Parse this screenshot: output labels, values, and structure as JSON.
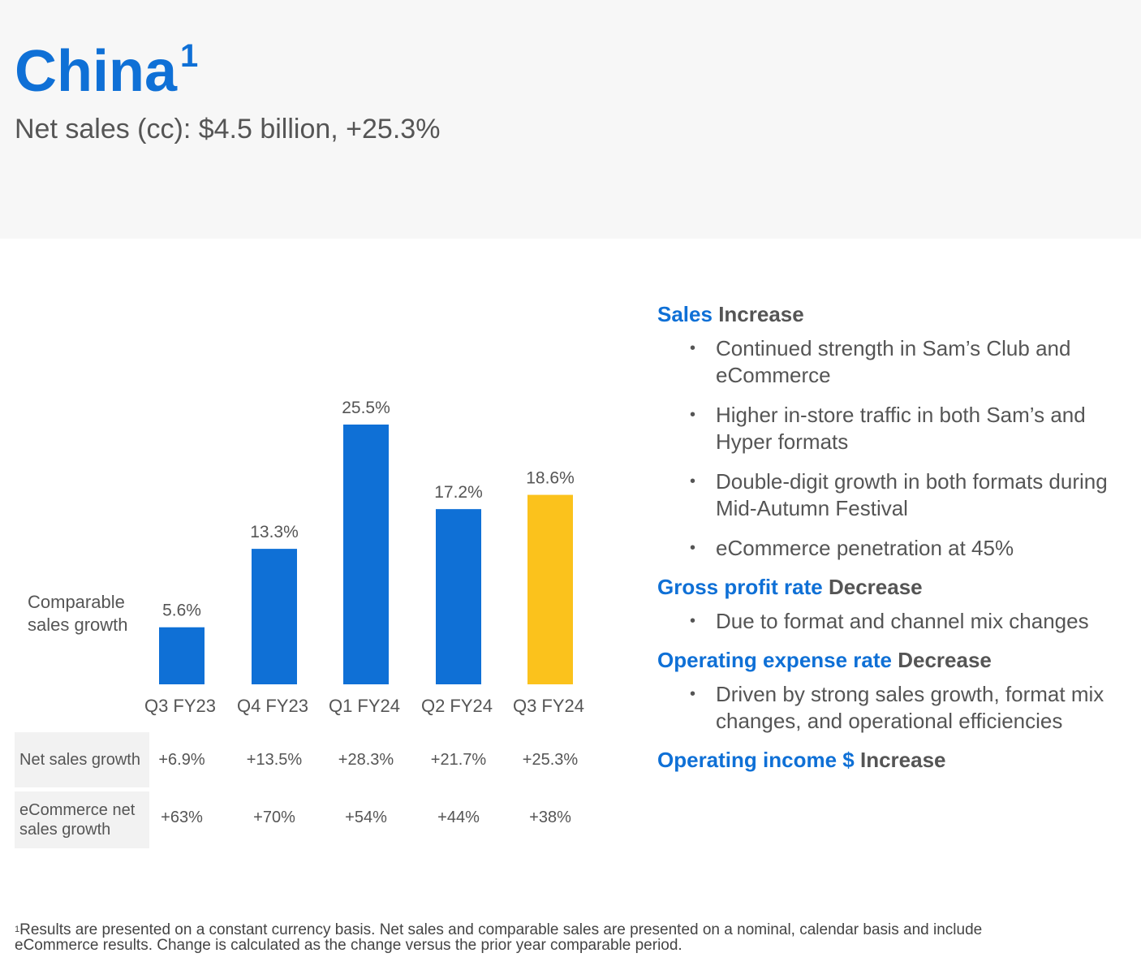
{
  "header": {
    "title": "China",
    "title_sup": "1",
    "subtitle": "Net sales (cc): $4.5 billion, +25.3%"
  },
  "chart_data": {
    "type": "bar",
    "categories": [
      "Q3 FY23",
      "Q4 FY23",
      "Q1 FY24",
      "Q2 FY24",
      "Q3 FY24"
    ],
    "values": [
      5.6,
      13.3,
      25.5,
      17.2,
      18.6
    ],
    "value_labels": [
      "5.6%",
      "13.3%",
      "25.5%",
      "17.2%",
      "18.6%"
    ],
    "series_label": "Comparable sales growth",
    "colors": [
      "#0f70d6",
      "#0f70d6",
      "#0f70d6",
      "#0f70d6",
      "#fbc21c"
    ],
    "ylim": [
      0,
      25.5
    ]
  },
  "table": {
    "rows": [
      {
        "label": "Net sales growth",
        "values": [
          "+6.9%",
          "+13.5%",
          "+28.3%",
          "+21.7%",
          "+25.3%"
        ]
      },
      {
        "label": "eCommerce net sales growth",
        "values": [
          "+63%",
          "+70%",
          "+54%",
          "+44%",
          "+38%"
        ]
      }
    ]
  },
  "commentary": {
    "sales": {
      "accent": "Sales",
      "result": "Increase",
      "bullets": [
        "Continued strength in Sam’s Club and eCommerce",
        "Higher in-store traffic in both Sam’s and Hyper formats",
        "Double-digit growth in both formats during Mid-Autumn Festival",
        "eCommerce penetration at 45%"
      ]
    },
    "gross_profit": {
      "accent": "Gross profit rate",
      "result": "Decrease",
      "bullets": [
        "Due to format and channel mix changes"
      ]
    },
    "opex": {
      "accent": "Operating expense rate",
      "result": "Decrease",
      "bullets": [
        "Driven by strong sales growth, format mix changes, and operational efficiencies"
      ]
    },
    "op_income": {
      "accent": "Operating income $",
      "result": "Increase"
    }
  },
  "footnote": {
    "sup": "1",
    "text": "Results are presented on a constant currency basis. Net sales and comparable sales are presented on a nominal, calendar basis and include eCommerce results. Change is calculated as the change versus the prior year comparable period."
  }
}
